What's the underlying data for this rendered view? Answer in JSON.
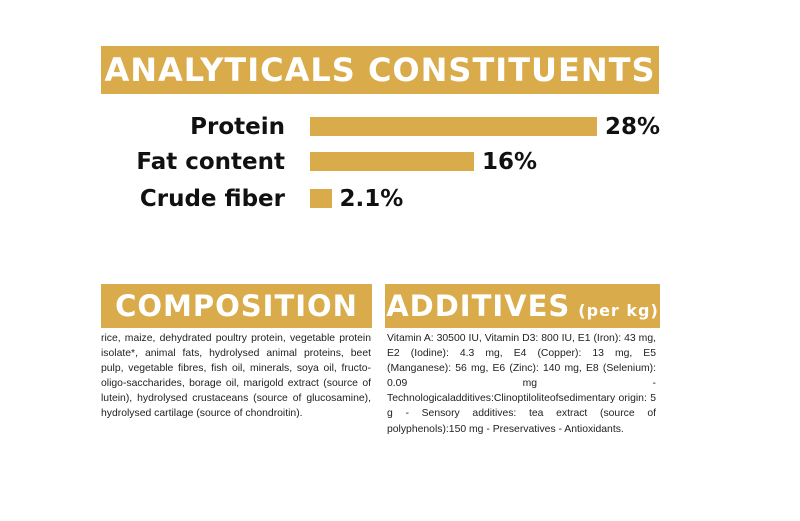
{
  "analytics": {
    "title": "ANALYTICALS CONSTITUENTS",
    "items": [
      {
        "label": "Protein",
        "value": "28%",
        "percent": 28
      },
      {
        "label": "Fat content",
        "value": "16%",
        "percent": 16
      },
      {
        "label": "Crude fiber",
        "value": "2.1%",
        "percent": 2.1
      }
    ]
  },
  "composition": {
    "title": "COMPOSITION",
    "text": "rice, maize, dehydrated poultry protein, vegetable protein isolate*, animal fats, hydrolysed animal proteins, beet pulp, vegetable fibres, fish oil, minerals, soya oil, fructo-oligo-saccharides, borage oil, marigold extract (source of lutein), hydrolysed crustaceans (source of glucosamine), hydrolysed cartilage (source of chondroitin)."
  },
  "additives": {
    "title": "ADDITIVES",
    "unit": "(per kg)",
    "text": "Vitamin A: 30500 IU, Vitamin D3: 800 IU, E1 (Iron): 43 mg, E2 (Iodine): 4.3 mg, E4 (Copper): 13 mg, E5 (Manganese): 56 mg, E6 (Zinc): 140 mg, E8 (Selenium): 0.09 mg - Technologicaladditives:Clinoptiloliteofsedimentary origin: 5 g - Sensory additives: tea extract (source of polyphenols):150 mg - Preservatives - Antioxidants."
  },
  "colors": {
    "accent": "#d9ab4a",
    "text": "#111111"
  }
}
